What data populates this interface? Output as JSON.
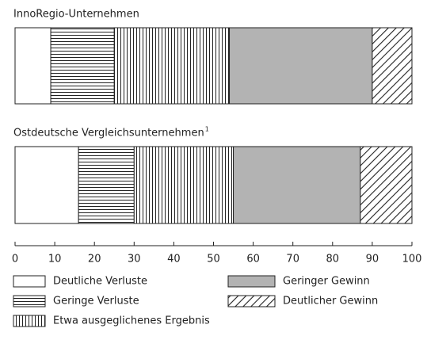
{
  "chart_data": {
    "type": "stacked_barh",
    "categories": [
      "InnoRegio-Unternehmen",
      "Ostdeutsche Vergleichsunternehmen"
    ],
    "category_notes": [
      null,
      "1"
    ],
    "series": [
      {
        "name": "Deutliche Verluste",
        "color": "#ffffff",
        "pattern": "none",
        "values": [
          9,
          16
        ]
      },
      {
        "name": "Geringe Verluste",
        "color": "#ffffff",
        "pattern": "horizontal",
        "values": [
          16,
          14
        ]
      },
      {
        "name": "Etwa ausgeglichenes Ergebnis",
        "color": "#ffffff",
        "pattern": "vertical",
        "values": [
          29,
          25
        ]
      },
      {
        "name": "Geringer Gewinn",
        "color": "#b3b3b3",
        "pattern": "none",
        "values": [
          36,
          32
        ]
      },
      {
        "name": "Deutlicher Gewinn",
        "color": "#ffffff",
        "pattern": "diagonal",
        "values": [
          10,
          13
        ]
      }
    ],
    "xlim": [
      0,
      100
    ],
    "xticks": [
      0,
      10,
      20,
      30,
      40,
      50,
      60,
      70,
      80,
      90,
      100
    ]
  }
}
